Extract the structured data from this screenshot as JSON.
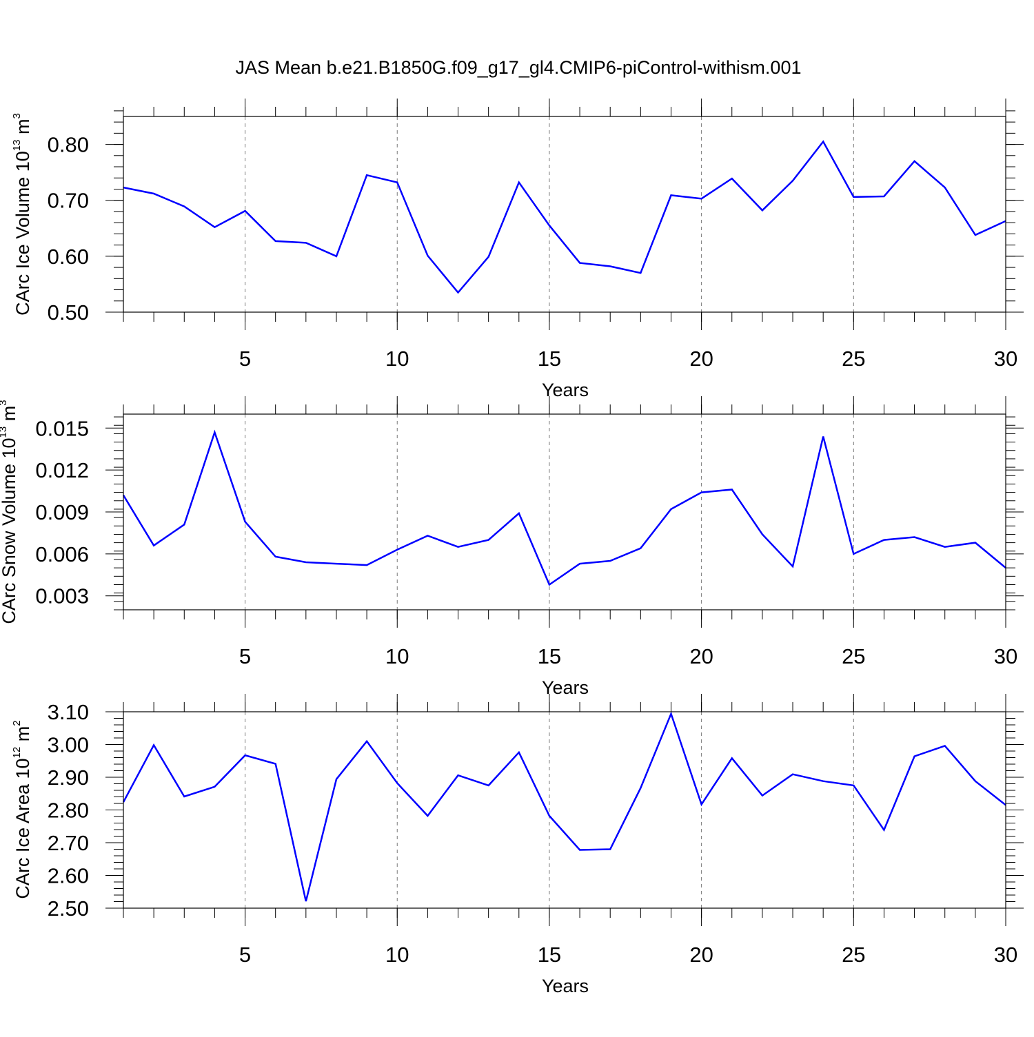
{
  "title": "JAS Mean b.e21.B1850G.f09_g17_gl4.CMIP6-piControl-withism.001",
  "chart_data": [
    {
      "type": "line",
      "xlabel": "Years",
      "ylabel_parts": [
        "CArc Ice Volume 10",
        "13",
        " m",
        "3"
      ],
      "xlim": [
        1,
        30
      ],
      "ylim": [
        0.5,
        0.85
      ],
      "xticks": [
        5,
        10,
        15,
        20,
        25,
        30
      ],
      "xtick_labels": [
        "5",
        "10",
        "15",
        "20",
        "25",
        "30"
      ],
      "yticks": [
        0.5,
        0.6,
        0.7,
        0.8
      ],
      "ytick_labels": [
        "0.50",
        "0.60",
        "0.70",
        "0.80"
      ],
      "ymin_step": 0.02,
      "grid": "vertical dashed at major x ticks",
      "line_color": "#0000ff",
      "x": [
        1,
        2,
        3,
        4,
        5,
        6,
        7,
        8,
        9,
        10,
        11,
        12,
        13,
        14,
        15,
        16,
        17,
        18,
        19,
        20,
        21,
        22,
        23,
        24,
        25,
        26,
        27,
        28,
        29,
        30
      ],
      "values": [
        0.723,
        0.712,
        0.689,
        0.652,
        0.681,
        0.627,
        0.624,
        0.6,
        0.745,
        0.732,
        0.601,
        0.535,
        0.599,
        0.732,
        0.655,
        0.588,
        0.582,
        0.57,
        0.709,
        0.703,
        0.739,
        0.682,
        0.735,
        0.805,
        0.706,
        0.707,
        0.77,
        0.723,
        0.638,
        0.663
      ]
    },
    {
      "type": "line",
      "xlabel": "Years",
      "ylabel_parts": [
        "CArc Snow Volume 10",
        "13",
        " m",
        "3"
      ],
      "xlim": [
        1,
        30
      ],
      "ylim": [
        0.002,
        0.016
      ],
      "xticks": [
        5,
        10,
        15,
        20,
        25,
        30
      ],
      "xtick_labels": [
        "5",
        "10",
        "15",
        "20",
        "25",
        "30"
      ],
      "yticks": [
        0.003,
        0.006,
        0.009,
        0.012,
        0.015
      ],
      "ytick_labels": [
        "0.003",
        "0.006",
        "0.009",
        "0.012",
        "0.015"
      ],
      "ymin_step": 0.0006,
      "grid": "vertical dashed at major x ticks",
      "line_color": "#0000ff",
      "x": [
        1,
        2,
        3,
        4,
        5,
        6,
        7,
        8,
        9,
        10,
        11,
        12,
        13,
        14,
        15,
        16,
        17,
        18,
        19,
        20,
        21,
        22,
        23,
        24,
        25,
        26,
        27,
        28,
        29,
        30
      ],
      "values": [
        0.0102,
        0.0066,
        0.0081,
        0.0147,
        0.0083,
        0.0058,
        0.0054,
        0.0053,
        0.0052,
        0.0063,
        0.0073,
        0.0065,
        0.007,
        0.0089,
        0.0038,
        0.0053,
        0.0055,
        0.0064,
        0.0092,
        0.0104,
        0.0106,
        0.0074,
        0.0051,
        0.0144,
        0.006,
        0.007,
        0.0072,
        0.0065,
        0.0068,
        0.005
      ]
    },
    {
      "type": "line",
      "xlabel": "Years",
      "ylabel_parts": [
        "CArc Ice Area 10",
        "12",
        " m",
        "2"
      ],
      "xlim": [
        1,
        30
      ],
      "ylim": [
        2.5,
        3.1
      ],
      "xticks": [
        5,
        10,
        15,
        20,
        25,
        30
      ],
      "xtick_labels": [
        "5",
        "10",
        "15",
        "20",
        "25",
        "30"
      ],
      "yticks": [
        2.5,
        2.6,
        2.7,
        2.8,
        2.9,
        3.0,
        3.1
      ],
      "ytick_labels": [
        "2.50",
        "2.60",
        "2.70",
        "2.80",
        "2.90",
        "3.00",
        "3.10"
      ],
      "ymin_step": 0.02,
      "grid": "vertical dashed at major x ticks",
      "line_color": "#0000ff",
      "x": [
        1,
        2,
        3,
        4,
        5,
        6,
        7,
        8,
        9,
        10,
        11,
        12,
        13,
        14,
        15,
        16,
        17,
        18,
        19,
        20,
        21,
        22,
        23,
        24,
        25,
        26,
        27,
        28,
        29,
        30
      ],
      "values": [
        2.824,
        2.998,
        2.841,
        2.871,
        2.967,
        2.941,
        2.521,
        2.894,
        3.01,
        2.882,
        2.782,
        2.906,
        2.875,
        2.976,
        2.782,
        2.678,
        2.68,
        2.867,
        3.094,
        2.817,
        2.958,
        2.844,
        2.909,
        2.888,
        2.875,
        2.739,
        2.964,
        2.996,
        2.888,
        2.815
      ]
    }
  ]
}
